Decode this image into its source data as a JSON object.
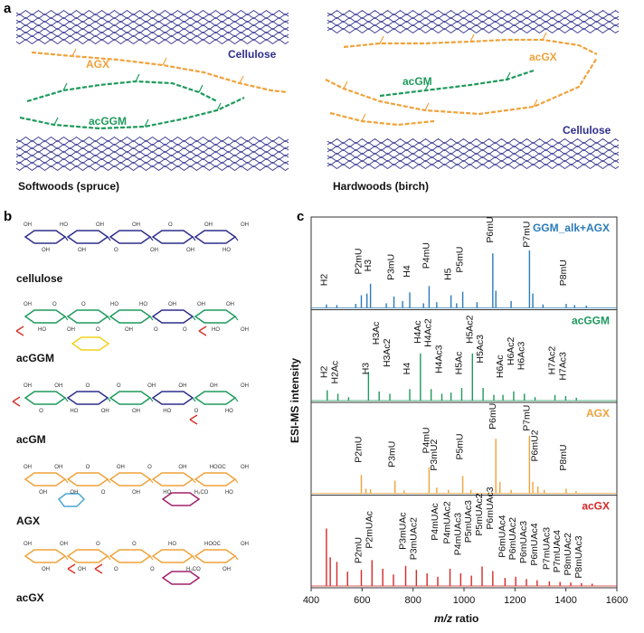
{
  "colors": {
    "cellulose": "#2e2e8c",
    "agx": "#f0a23a",
    "acgm": "#1e9a5c",
    "acgx_panel": "#d62828",
    "ggm_agx": "#2a7bb8",
    "acetyl": "#d9342b",
    "galactose": "#f2d21b",
    "arabinose": "#4aa7d9",
    "glcA": "#a0206b"
  },
  "panel_a": {
    "letter": "a",
    "softwood": {
      "cellulose_label": "Cellulose",
      "agx_label": "AGX",
      "acggm_label": "acGGM",
      "caption": "Softwoods (spruce)"
    },
    "hardwood": {
      "cellulose_label": "Cellulose",
      "acgx_label": "acGX",
      "acgm_label": "acGM",
      "caption": "Hardwoods (birch)"
    }
  },
  "panel_b": {
    "letter": "b",
    "structures": [
      {
        "name": "cellulose",
        "substituent_labels": [
          "OH",
          "OH",
          "HO",
          "OH",
          "OH",
          "O",
          "OH",
          "OH",
          "O",
          "OH",
          "OH",
          "HO",
          "OH"
        ]
      },
      {
        "name": "acGGM",
        "substituent_labels": [
          "OH",
          "HO",
          "O",
          "OH",
          "O",
          "O",
          "HO",
          "OH",
          "HO",
          "O",
          "OH",
          "O",
          "OH",
          "HO",
          "OH",
          "OH"
        ]
      },
      {
        "name": "acGM",
        "substituent_labels": [
          "OH",
          "O",
          "OH",
          "HO",
          "O",
          "OH",
          "O",
          "OH",
          "OH",
          "HO",
          "OH",
          "O",
          "OH",
          "HO",
          "OH"
        ]
      },
      {
        "name": "AGX",
        "substituent_labels": [
          "OH",
          "OH",
          "OH",
          "OH",
          "O",
          "O",
          "OH",
          "OH",
          "O",
          "HO",
          "OH",
          "H₃CO",
          "HOOC",
          "HO",
          "OH"
        ]
      },
      {
        "name": "acGX",
        "substituent_labels": [
          "OH",
          "OH",
          "OH",
          "OH",
          "O",
          "O",
          "O",
          "O",
          "HO",
          "H₃CO",
          "HOOC",
          "OH",
          "OH"
        ]
      }
    ]
  },
  "panel_c": {
    "letter": "c",
    "ylabel": "ESI-MS intensity",
    "xlabel_prefix": "m/z",
    "xlabel_suffix": " ratio"
  },
  "chart_data": {
    "type": "bar",
    "xlim": [
      400,
      1600
    ],
    "xticks": [
      400,
      600,
      800,
      1000,
      1200,
      1400,
      1600
    ],
    "xlabel": "m/z ratio",
    "ylabel": "ESI-MS intensity",
    "series": [
      {
        "name": "GGM_alk+AGX",
        "color": "#2a7bb8",
        "peaks": [
          [
            460,
            0.06
          ],
          [
            501,
            0.05
          ],
          [
            575,
            0.07
          ],
          [
            597,
            0.22
          ],
          [
            619,
            0.25
          ],
          [
            633,
            0.42
          ],
          [
            695,
            0.08
          ],
          [
            725,
            0.2
          ],
          [
            759,
            0.12
          ],
          [
            787,
            0.27
          ],
          [
            841,
            0.08
          ],
          [
            863,
            0.38
          ],
          [
            893,
            0.1
          ],
          [
            949,
            0.22
          ],
          [
            971,
            0.08
          ],
          [
            995,
            0.28
          ],
          [
            1051,
            0.1
          ],
          [
            1113,
            0.95
          ],
          [
            1125,
            0.3
          ],
          [
            1185,
            0.12
          ],
          [
            1257,
            1.0
          ],
          [
            1270,
            0.25
          ],
          [
            1310,
            0.06
          ],
          [
            1401,
            0.07
          ],
          [
            1434,
            0.05
          ],
          [
            1480,
            0.04
          ]
        ],
        "labels": [
          {
            "text": "H2",
            "x": 463,
            "h": 0.35
          },
          {
            "text": "P2mU",
            "x": 597,
            "h": 0.55
          },
          {
            "text": "H3",
            "x": 634,
            "h": 0.6
          },
          {
            "text": "P3mU",
            "x": 725,
            "h": 0.45
          },
          {
            "text": "H4",
            "x": 787,
            "h": 0.5
          },
          {
            "text": "P4mU",
            "x": 863,
            "h": 0.65
          },
          {
            "text": "H5",
            "x": 949,
            "h": 0.45
          },
          {
            "text": "P5mU",
            "x": 995,
            "h": 0.58
          },
          {
            "text": "P6mU",
            "x": 1113,
            "h": 1.1
          },
          {
            "text": "P7mU",
            "x": 1257,
            "h": 1.02
          },
          {
            "text": "P8mU",
            "x": 1401,
            "h": 0.35
          }
        ]
      },
      {
        "name": "acGGM",
        "color": "#1e9a5c",
        "peaks": [
          [
            463,
            0.18
          ],
          [
            505,
            0.12
          ],
          [
            547,
            0.06
          ],
          [
            625,
            0.5
          ],
          [
            667,
            0.16
          ],
          [
            709,
            0.12
          ],
          [
            787,
            0.2
          ],
          [
            829,
            0.82
          ],
          [
            871,
            0.2
          ],
          [
            913,
            0.12
          ],
          [
            949,
            0.14
          ],
          [
            991,
            0.22
          ],
          [
            1033,
            0.82
          ],
          [
            1075,
            0.22
          ],
          [
            1117,
            0.1
          ],
          [
            1153,
            0.1
          ],
          [
            1195,
            0.16
          ],
          [
            1237,
            0.12
          ],
          [
            1279,
            0.06
          ],
          [
            1357,
            0.1
          ],
          [
            1399,
            0.08
          ],
          [
            1441,
            0.05
          ]
        ],
        "labels": [
          {
            "text": "H2",
            "x": 463,
            "h": 0.36
          },
          {
            "text": "H2Ac",
            "x": 505,
            "h": 0.26
          },
          {
            "text": "H3",
            "x": 625,
            "h": 0.42
          },
          {
            "text": "H3Ac2",
            "x": 709,
            "h": 0.55
          },
          {
            "text": "H3Ac",
            "x": 667,
            "h": 0.94
          },
          {
            "text": "H4",
            "x": 787,
            "h": 0.42
          },
          {
            "text": "H4Ac",
            "x": 829,
            "h": 0.96
          },
          {
            "text": "H4Ac2",
            "x": 871,
            "h": 0.9
          },
          {
            "text": "H4Ac3",
            "x": 913,
            "h": 0.44
          },
          {
            "text": "H5Ac",
            "x": 991,
            "h": 0.42
          },
          {
            "text": "H5Ac2",
            "x": 1033,
            "h": 0.96
          },
          {
            "text": "H5Ac3",
            "x": 1075,
            "h": 0.62
          },
          {
            "text": "H6Ac",
            "x": 1153,
            "h": 0.36
          },
          {
            "text": "H6Ac2",
            "x": 1195,
            "h": 0.58
          },
          {
            "text": "H6Ac3",
            "x": 1237,
            "h": 0.5
          },
          {
            "text": "H7Ac2",
            "x": 1357,
            "h": 0.42
          },
          {
            "text": "H7Ac3",
            "x": 1399,
            "h": 0.32
          }
        ]
      },
      {
        "name": "AGX",
        "color": "#f0a23a",
        "peaks": [
          [
            597,
            0.32
          ],
          [
            615,
            0.08
          ],
          [
            633,
            0.07
          ],
          [
            729,
            0.22
          ],
          [
            765,
            0.05
          ],
          [
            863,
            0.45
          ],
          [
            893,
            0.1
          ],
          [
            939,
            0.06
          ],
          [
            995,
            0.3
          ],
          [
            1027,
            0.06
          ],
          [
            1125,
            0.95
          ],
          [
            1141,
            0.2
          ],
          [
            1185,
            0.06
          ],
          [
            1257,
            1.0
          ],
          [
            1270,
            0.2
          ],
          [
            1290,
            0.12
          ],
          [
            1315,
            0.06
          ],
          [
            1401,
            0.08
          ],
          [
            1440,
            0.04
          ]
        ],
        "labels": [
          {
            "text": "P2mU",
            "x": 597,
            "h": 0.5
          },
          {
            "text": "P3mU",
            "x": 729,
            "h": 0.42
          },
          {
            "text": "P4mU",
            "x": 863,
            "h": 0.66
          },
          {
            "text": "P3mU2",
            "x": 893,
            "h": 0.36
          },
          {
            "text": "P5mU",
            "x": 995,
            "h": 0.55
          },
          {
            "text": "P6mU",
            "x": 1125,
            "h": 1.08
          },
          {
            "text": "P7mU",
            "x": 1257,
            "h": 1.05
          },
          {
            "text": "P6mU2",
            "x": 1290,
            "h": 0.52
          },
          {
            "text": "P8mU",
            "x": 1401,
            "h": 0.36
          }
        ]
      },
      {
        "name": "acGX",
        "color": "#d62828",
        "peaks": [
          [
            460,
            1.0
          ],
          [
            475,
            0.5
          ],
          [
            501,
            0.42
          ],
          [
            543,
            0.25
          ],
          [
            597,
            0.28
          ],
          [
            639,
            0.45
          ],
          [
            681,
            0.3
          ],
          [
            723,
            0.2
          ],
          [
            771,
            0.35
          ],
          [
            813,
            0.28
          ],
          [
            855,
            0.22
          ],
          [
            897,
            0.16
          ],
          [
            945,
            0.3
          ],
          [
            987,
            0.22
          ],
          [
            1029,
            0.18
          ],
          [
            1071,
            0.34
          ],
          [
            1113,
            0.26
          ],
          [
            1161,
            0.14
          ],
          [
            1203,
            0.16
          ],
          [
            1245,
            0.12
          ],
          [
            1287,
            0.1
          ],
          [
            1335,
            0.08
          ],
          [
            1377,
            0.07
          ],
          [
            1419,
            0.06
          ],
          [
            1461,
            0.05
          ],
          [
            1503,
            0.04
          ]
        ],
        "labels": [
          {
            "text": "P2mU",
            "x": 597,
            "h": 0.36
          },
          {
            "text": "P2mUAc",
            "x": 639,
            "h": 0.62
          },
          {
            "text": "P3mUAc",
            "x": 771,
            "h": 0.6
          },
          {
            "text": "P3mUAc2",
            "x": 813,
            "h": 0.42
          },
          {
            "text": "P4mUAc",
            "x": 897,
            "h": 0.76
          },
          {
            "text": "P4mUAc2",
            "x": 945,
            "h": 0.7
          },
          {
            "text": "P4mUAc3",
            "x": 987,
            "h": 0.5
          },
          {
            "text": "P5mUAc3",
            "x": 1029,
            "h": 0.72
          },
          {
            "text": "P5mUAc2",
            "x": 1071,
            "h": 0.84
          },
          {
            "text": "P6mUAc3",
            "x": 1113,
            "h": 0.95
          },
          {
            "text": "P6mUAc4",
            "x": 1161,
            "h": 0.46
          },
          {
            "text": "P6mUAc2",
            "x": 1203,
            "h": 0.42
          },
          {
            "text": "P6mUAc3",
            "x": 1245,
            "h": 0.36
          },
          {
            "text": "P6mUAc4",
            "x": 1287,
            "h": 0.32
          },
          {
            "text": "P7mUAc3",
            "x": 1335,
            "h": 0.25
          },
          {
            "text": "P7mUAc4",
            "x": 1377,
            "h": 0.2
          },
          {
            "text": "P8mUAc2",
            "x": 1419,
            "h": 0.15
          },
          {
            "text": "P8mUAc3",
            "x": 1461,
            "h": 0.1
          }
        ]
      }
    ]
  }
}
